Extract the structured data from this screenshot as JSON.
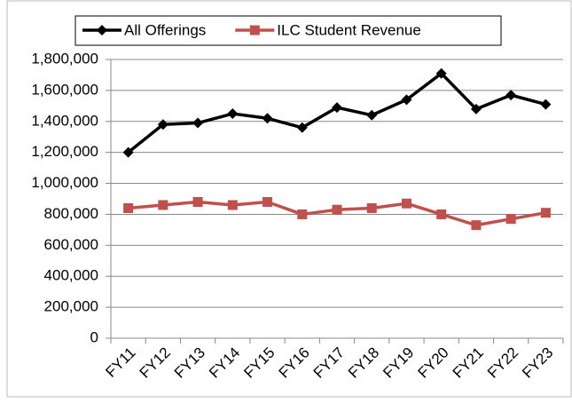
{
  "chart_data": {
    "type": "line",
    "categories": [
      "FY11",
      "FY12",
      "FY13",
      "FY14",
      "FY15",
      "FY16",
      "FY17",
      "FY18",
      "FY19",
      "FY20",
      "FY21",
      "FY22",
      "FY23"
    ],
    "series": [
      {
        "name": "All Offerings",
        "color": "#000000",
        "marker": "diamond",
        "values": [
          1200000,
          1380000,
          1390000,
          1450000,
          1420000,
          1360000,
          1490000,
          1440000,
          1540000,
          1710000,
          1480000,
          1570000,
          1510000
        ]
      },
      {
        "name": "ILC Student Revenue",
        "color": "#c0504d",
        "marker": "square",
        "values": [
          840000,
          860000,
          880000,
          860000,
          880000,
          800000,
          830000,
          840000,
          870000,
          800000,
          730000,
          770000,
          810000
        ]
      }
    ],
    "ylim": [
      0,
      1800000
    ],
    "yticks": [
      0,
      {
        "value": 200000,
        "label": "200,000"
      },
      {
        "value": 400000,
        "label": "400,000"
      },
      {
        "value": 600000,
        "label": "600,000"
      },
      {
        "value": 800000,
        "label": "800,000"
      },
      {
        "value": 1000000,
        "label": "1,000,000"
      },
      {
        "value": 1200000,
        "label": "1,200,000"
      },
      {
        "value": 1400000,
        "label": "1,400,000"
      },
      {
        "value": 1600000,
        "label": "1,600,000"
      },
      {
        "value": 1800000,
        "label": "1,800,000"
      }
    ],
    "grid": true,
    "legend": "top"
  }
}
